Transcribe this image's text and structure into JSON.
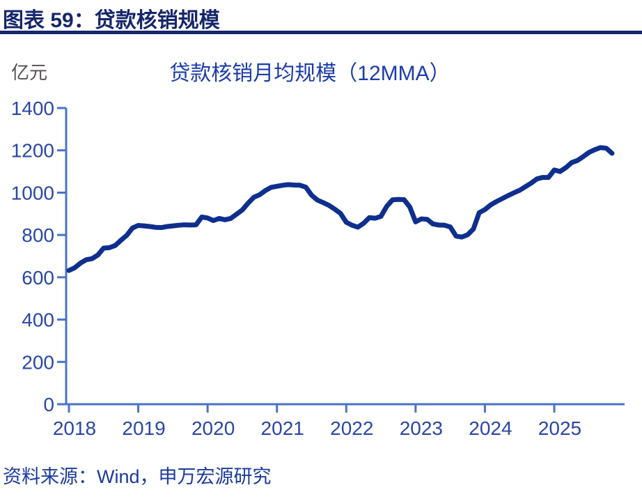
{
  "page": {
    "header_title": "图表 59：贷款核销规模",
    "source_note": "资料来源：Wind，申万宏源研究"
  },
  "chart_data": {
    "type": "line",
    "title": "贷款核销月均规模（12MMA）",
    "unit_label": "亿元",
    "xlabel": "",
    "ylabel": "亿元",
    "ylim": [
      0,
      1400
    ],
    "y_ticks": [
      0,
      200,
      400,
      600,
      800,
      1000,
      1200,
      1400
    ],
    "x_ticks": [
      2018,
      2019,
      2020,
      2021,
      2022,
      2023,
      2024,
      2025
    ],
    "grid": false,
    "legend": "none",
    "monthly_start": "2018-01",
    "monthly_end": "2025-11",
    "series": [
      {
        "name": "贷款核销月均规模（12MMA）",
        "monthly_values": [
          632,
          645,
          667,
          683,
          688,
          705,
          738,
          740,
          750,
          775,
          798,
          833,
          845,
          843,
          840,
          836,
          835,
          840,
          843,
          846,
          848,
          847,
          848,
          885,
          880,
          868,
          878,
          872,
          878,
          898,
          918,
          950,
          978,
          990,
          1010,
          1025,
          1030,
          1035,
          1038,
          1036,
          1035,
          1026,
          988,
          965,
          953,
          940,
          922,
          902,
          860,
          846,
          837,
          855,
          882,
          879,
          888,
          935,
          966,
          968,
          967,
          932,
          862,
          876,
          874,
          852,
          847,
          846,
          838,
          795,
          790,
          801,
          828,
          905,
          920,
          942,
          958,
          972,
          986,
          999,
          1011,
          1028,
          1045,
          1065,
          1072,
          1072,
          1107,
          1100,
          1118,
          1142,
          1152,
          1170,
          1190,
          1203,
          1213,
          1210,
          1186
        ]
      }
    ],
    "colors": {
      "line": "#0f2f8e",
      "axis": "#4a72c8",
      "tick_label": "#2946a8",
      "title": "#1c3ba8",
      "header": "#16266b",
      "source": "#1a3a9c",
      "unit": "#555050"
    }
  }
}
